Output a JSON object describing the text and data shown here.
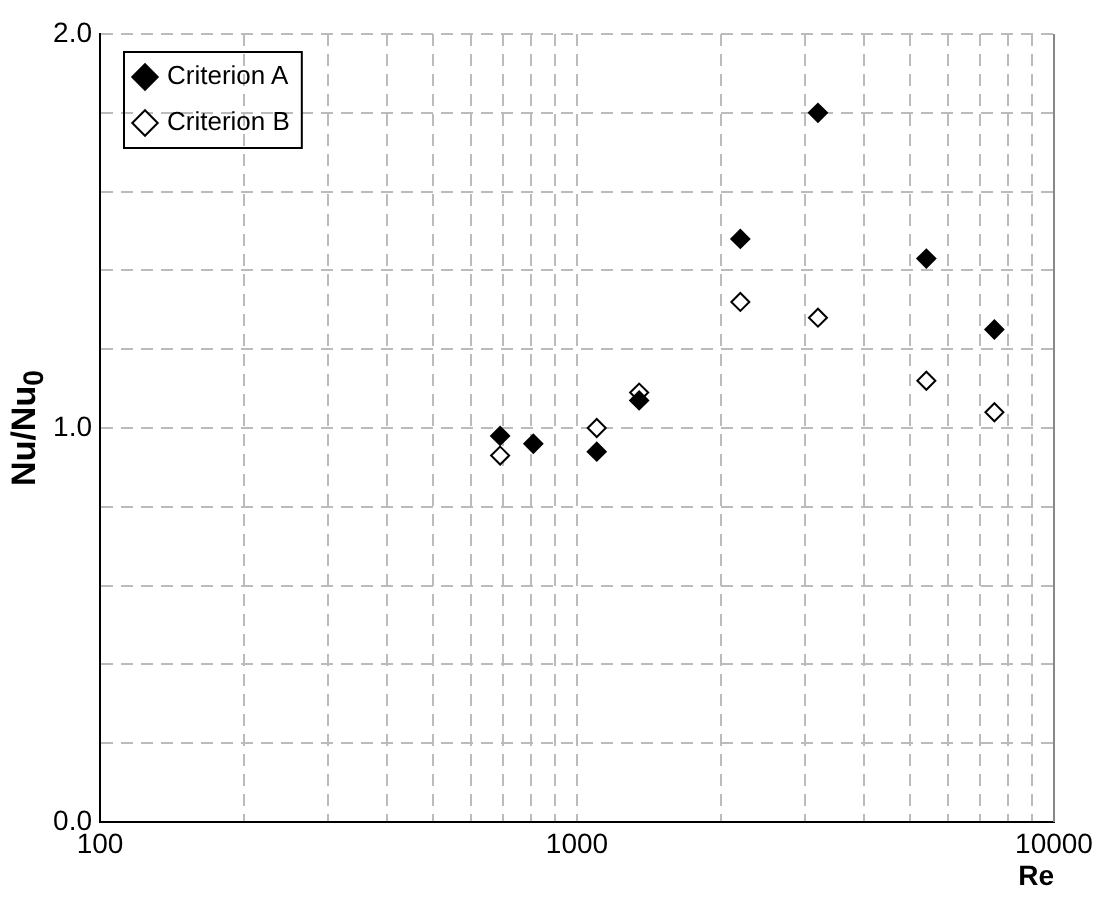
{
  "chart_data": {
    "type": "scatter",
    "xlabel": "Re",
    "ylabel": "Nu/Nu$_{0}$",
    "log": "x",
    "xlim": [
      100,
      10000
    ],
    "ylim": [
      0,
      2
    ],
    "xticks": [
      100,
      {
        "value": 200,
        "label": null
      },
      {
        "value": 300,
        "label": null
      },
      {
        "value": 400,
        "label": null
      },
      {
        "value": 500,
        "label": null
      },
      {
        "value": 600,
        "label": null
      },
      {
        "value": 700,
        "label": null
      },
      {
        "value": 800,
        "label": null
      },
      {
        "value": 900,
        "label": null
      },
      1000,
      {
        "value": 2000,
        "label": null
      },
      {
        "value": 3000,
        "label": null
      },
      {
        "value": 4000,
        "label": null
      },
      {
        "value": 5000,
        "label": null
      },
      {
        "value": 6000,
        "label": null
      },
      {
        "value": 7000,
        "label": null
      },
      {
        "value": 8000,
        "label": null
      },
      {
        "value": 9000,
        "label": null
      },
      10000
    ],
    "yticks": [
      {
        "value": 0,
        "label": "0.0"
      },
      {
        "value": 0.2,
        "label": null
      },
      {
        "value": 0.4,
        "label": null
      },
      {
        "value": 0.6,
        "label": null
      },
      {
        "value": 0.8,
        "label": null
      },
      {
        "value": 1,
        "label": "1.0"
      },
      {
        "value": 1.2,
        "label": null
      },
      {
        "value": 1.4,
        "label": null
      },
      {
        "value": 1.6,
        "label": null
      },
      {
        "value": 1.8,
        "label": null
      },
      {
        "value": 2,
        "label": "2.0"
      }
    ],
    "grid": true,
    "legend": "top left",
    "marker": "diamond",
    "x": [
      690,
      810,
      1100,
      1350,
      2200,
      3200,
      5400,
      7500
    ],
    "series": [
      {
        "name": "Criterion A",
        "color": "#000000",
        "values": [
          0.98,
          0.96,
          0.94,
          1.07,
          1.48,
          1.8,
          1.43,
          1.25
        ]
      },
      {
        "name": "Criterion B",
        "color": "#ffffff",
        "values": [
          0.93,
          null,
          1.0,
          1.09,
          1.32,
          1.28,
          1.12,
          1.04
        ]
      }
    ]
  }
}
